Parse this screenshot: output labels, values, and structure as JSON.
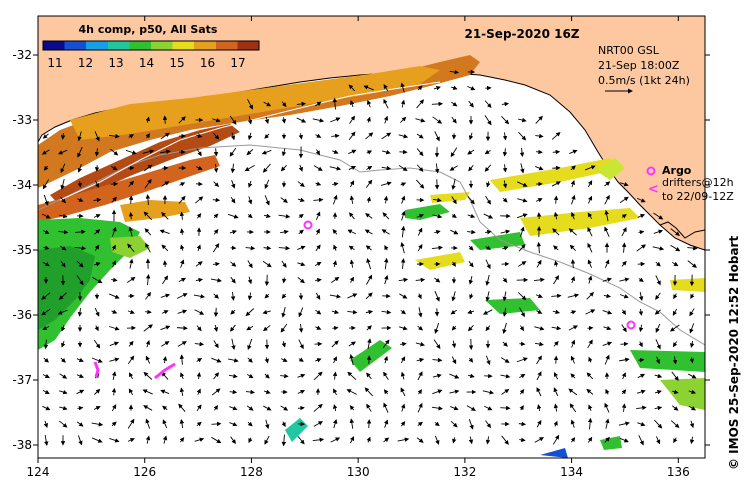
{
  "title": "21-Sep-2020 16Z",
  "colorbar": {
    "label": "4h comp, p50, All Sats",
    "ticks": [
      "11",
      "12",
      "13",
      "14",
      "15",
      "16",
      "17"
    ],
    "colors": [
      "#0a0a8c",
      "#1450d2",
      "#14a0e6",
      "#20c8a0",
      "#30c030",
      "#8cd232",
      "#e6dc1e",
      "#e6a01e",
      "#d2641e",
      "#a03214"
    ]
  },
  "legend": {
    "line1": "NRT00 GSL",
    "line2": "21-Sep 18:00Z",
    "line3": "0.5m/s (1kt 24h)"
  },
  "argo": {
    "label": "Argo",
    "drifters_line1": "drifters@12h",
    "drifters_line2": "to 22/09-12Z"
  },
  "credit": "© IMOS 25-Sep-2020 12:52 Hobart",
  "x_ticks": [
    "124",
    "126",
    "128",
    "130",
    "132",
    "134",
    "136"
  ],
  "y_ticks": [
    "-32",
    "-33",
    "-34",
    "-35",
    "-36",
    "-37",
    "-38"
  ],
  "map_extent": {
    "lon": [
      124,
      136.5
    ],
    "lat": [
      -31.4,
      -38.2
    ]
  },
  "colors": {
    "land": "#fdc8a0",
    "sea": "#ffffff",
    "argo": "#ff33ff",
    "bathy": "#999999"
  }
}
